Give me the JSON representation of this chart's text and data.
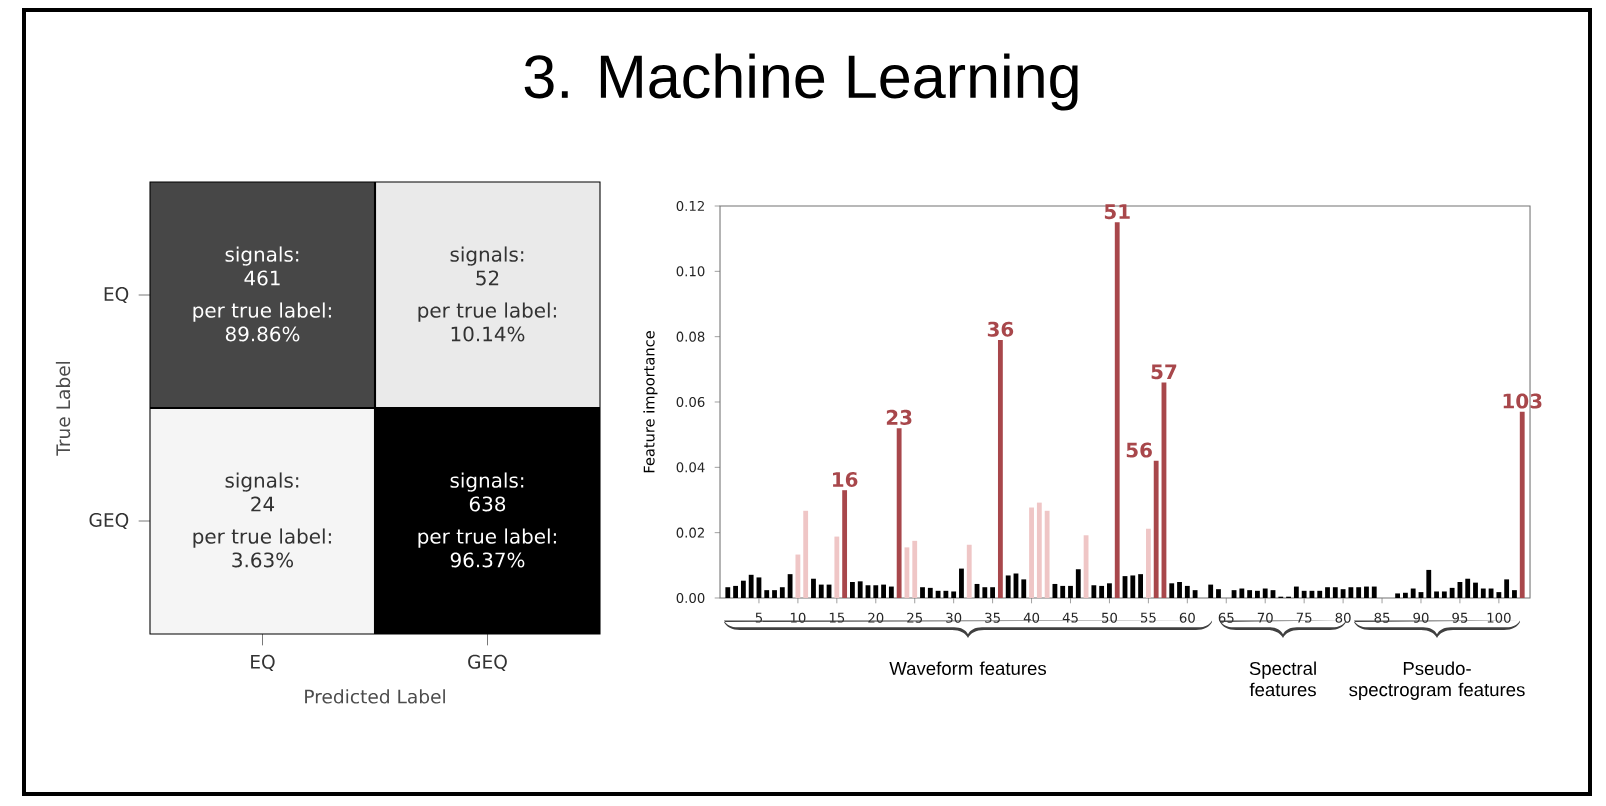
{
  "chart_data": [
    {
      "type": "other",
      "title": "3. Machine Learning"
    },
    {
      "type": "heatmap",
      "xlabel": "Predicted Label",
      "ylabel": "True Label",
      "categories": [
        "EQ",
        "GEQ"
      ],
      "y_categories": [
        "EQ",
        "GEQ"
      ],
      "cells": [
        [
          461,
          52
        ],
        [
          24,
          638
        ]
      ],
      "cell_labels": [
        [
          "461",
          "52"
        ],
        [
          "24",
          "638"
        ]
      ],
      "annotations": [
        "signals:",
        "per true label:",
        "89.86%",
        "signals:",
        "per true label:",
        "10.14%",
        "signals:",
        "per true label:",
        "3.63%",
        "signals:",
        "per true label:",
        "96.37%"
      ]
    },
    {
      "type": "bar",
      "ylabel": "Feature importance",
      "x": [
        1,
        2,
        3,
        4,
        5,
        6,
        7,
        8,
        9,
        10,
        11,
        12,
        13,
        14,
        15,
        16,
        17,
        18,
        19,
        20,
        21,
        22,
        23,
        24,
        25,
        26,
        27,
        28,
        29,
        30,
        31,
        32,
        33,
        34,
        35,
        36,
        37,
        38,
        39,
        40,
        41,
        42,
        43,
        44,
        45,
        46,
        47,
        48,
        49,
        50,
        51,
        52,
        53,
        54,
        55,
        56,
        57,
        58,
        59,
        60,
        61,
        62,
        63,
        64,
        65,
        66,
        67,
        68,
        69,
        70,
        71,
        72,
        73,
        74,
        75,
        76,
        77,
        78,
        79,
        80,
        81,
        82,
        83,
        84,
        85,
        86,
        87,
        88,
        89,
        90,
        91,
        92,
        93,
        94,
        95,
        96,
        97,
        98,
        99,
        100,
        101,
        102,
        103
      ],
      "values": [
        0.0033,
        0.0037,
        0.0053,
        0.0071,
        0.0063,
        0.0024,
        0.0024,
        0.0033,
        0.0073,
        0.0133,
        0.0267,
        0.0059,
        0.0041,
        0.0041,
        0.0188,
        0.033,
        0.0049,
        0.0051,
        0.0039,
        0.0039,
        0.0041,
        0.0035,
        0.052,
        0.0155,
        0.0175,
        0.0033,
        0.0031,
        0.0022,
        0.0022,
        0.002,
        0.009,
        0.0163,
        0.0043,
        0.0033,
        0.0033,
        0.079,
        0.0069,
        0.0075,
        0.0057,
        0.0277,
        0.0292,
        0.0267,
        0.0043,
        0.0037,
        0.0037,
        0.0088,
        0.0192,
        0.0039,
        0.0037,
        0.0045,
        0.115,
        0.0067,
        0.0069,
        0.0073,
        0.0212,
        0.042,
        0.066,
        0.0045,
        0.0049,
        0.0037,
        0.0024,
        0,
        0.0041,
        0.0027,
        0,
        0.0024,
        0.0029,
        0.0024,
        0.0022,
        0.0029,
        0.0024,
        0.0004,
        0.0004,
        0.0035,
        0.0022,
        0.0022,
        0.0022,
        0.0033,
        0.0033,
        0.0027,
        0.0033,
        0.0033,
        0.0035,
        0.0035,
        0,
        0,
        0.0014,
        0.0016,
        0.0029,
        0.0018,
        0.0086,
        0.002,
        0.002,
        0.0031,
        0.0049,
        0.0059,
        0.0047,
        0.0029,
        0.0029,
        0.0018,
        0.0057,
        0.0024,
        0.057
      ],
      "colors": [
        "#000000",
        "#000000",
        "#000000",
        "#000000",
        "#000000",
        "#000000",
        "#000000",
        "#000000",
        "#000000",
        "#efc6c6",
        "#efc6c6",
        "#000000",
        "#000000",
        "#000000",
        "#efc6c6",
        "#a8474b",
        "#000000",
        "#000000",
        "#000000",
        "#000000",
        "#000000",
        "#000000",
        "#a8474b",
        "#efc6c6",
        "#efc6c6",
        "#000000",
        "#000000",
        "#000000",
        "#000000",
        "#000000",
        "#000000",
        "#efc6c6",
        "#000000",
        "#000000",
        "#000000",
        "#a8474b",
        "#000000",
        "#000000",
        "#000000",
        "#efc6c6",
        "#efc6c6",
        "#efc6c6",
        "#000000",
        "#000000",
        "#000000",
        "#000000",
        "#efc6c6",
        "#000000",
        "#000000",
        "#000000",
        "#a8474b",
        "#000000",
        "#000000",
        "#000000",
        "#efc6c6",
        "#a8474b",
        "#a8474b",
        "#000000",
        "#000000",
        "#000000",
        "#000000",
        "#000000",
        "#000000",
        "#000000",
        "#000000",
        "#000000",
        "#000000",
        "#000000",
        "#000000",
        "#000000",
        "#000000",
        "#000000",
        "#000000",
        "#000000",
        "#000000",
        "#000000",
        "#000000",
        "#000000",
        "#000000",
        "#000000",
        "#000000",
        "#000000",
        "#000000",
        "#000000",
        "#000000",
        "#000000",
        "#000000",
        "#000000",
        "#000000",
        "#000000",
        "#000000",
        "#000000",
        "#000000",
        "#000000",
        "#000000",
        "#000000",
        "#000000",
        "#000000",
        "#000000",
        "#000000",
        "#000000",
        "#000000",
        "#a8474b"
      ],
      "xlim": [
        0,
        104
      ],
      "ylim": [
        0,
        0.12
      ],
      "xticks": [
        5,
        10,
        15,
        20,
        25,
        30,
        35,
        40,
        45,
        50,
        55,
        60,
        65,
        70,
        75,
        80,
        85,
        90,
        95,
        100
      ],
      "yticks": [
        {
          "value": 0,
          "label": "0.00"
        },
        {
          "value": 0.02,
          "label": "0.02"
        },
        {
          "value": 0.04,
          "label": "0.04"
        },
        {
          "value": 0.06,
          "label": "0.06"
        },
        {
          "value": 0.08,
          "label": "0.08"
        },
        {
          "value": 0.1,
          "label": "0.10"
        },
        {
          "value": 0.12,
          "label": "0.12"
        }
      ],
      "annotations": [
        {
          "text": "16",
          "x": 16,
          "y": 0.033
        },
        {
          "text": "23",
          "x": 23,
          "y": 0.052
        },
        {
          "text": "36",
          "x": 36,
          "y": 0.079
        },
        {
          "text": "51",
          "x": 51,
          "y": 0.115
        },
        {
          "text": "56",
          "x": 56,
          "y": 0.042
        },
        {
          "text": "57",
          "x": 57,
          "y": 0.066
        },
        {
          "text": "103",
          "x": 103,
          "y": 0.057
        },
        "Waveform features",
        "Spectral features",
        "Pseudo-spectrogram features"
      ]
    }
  ]
}
